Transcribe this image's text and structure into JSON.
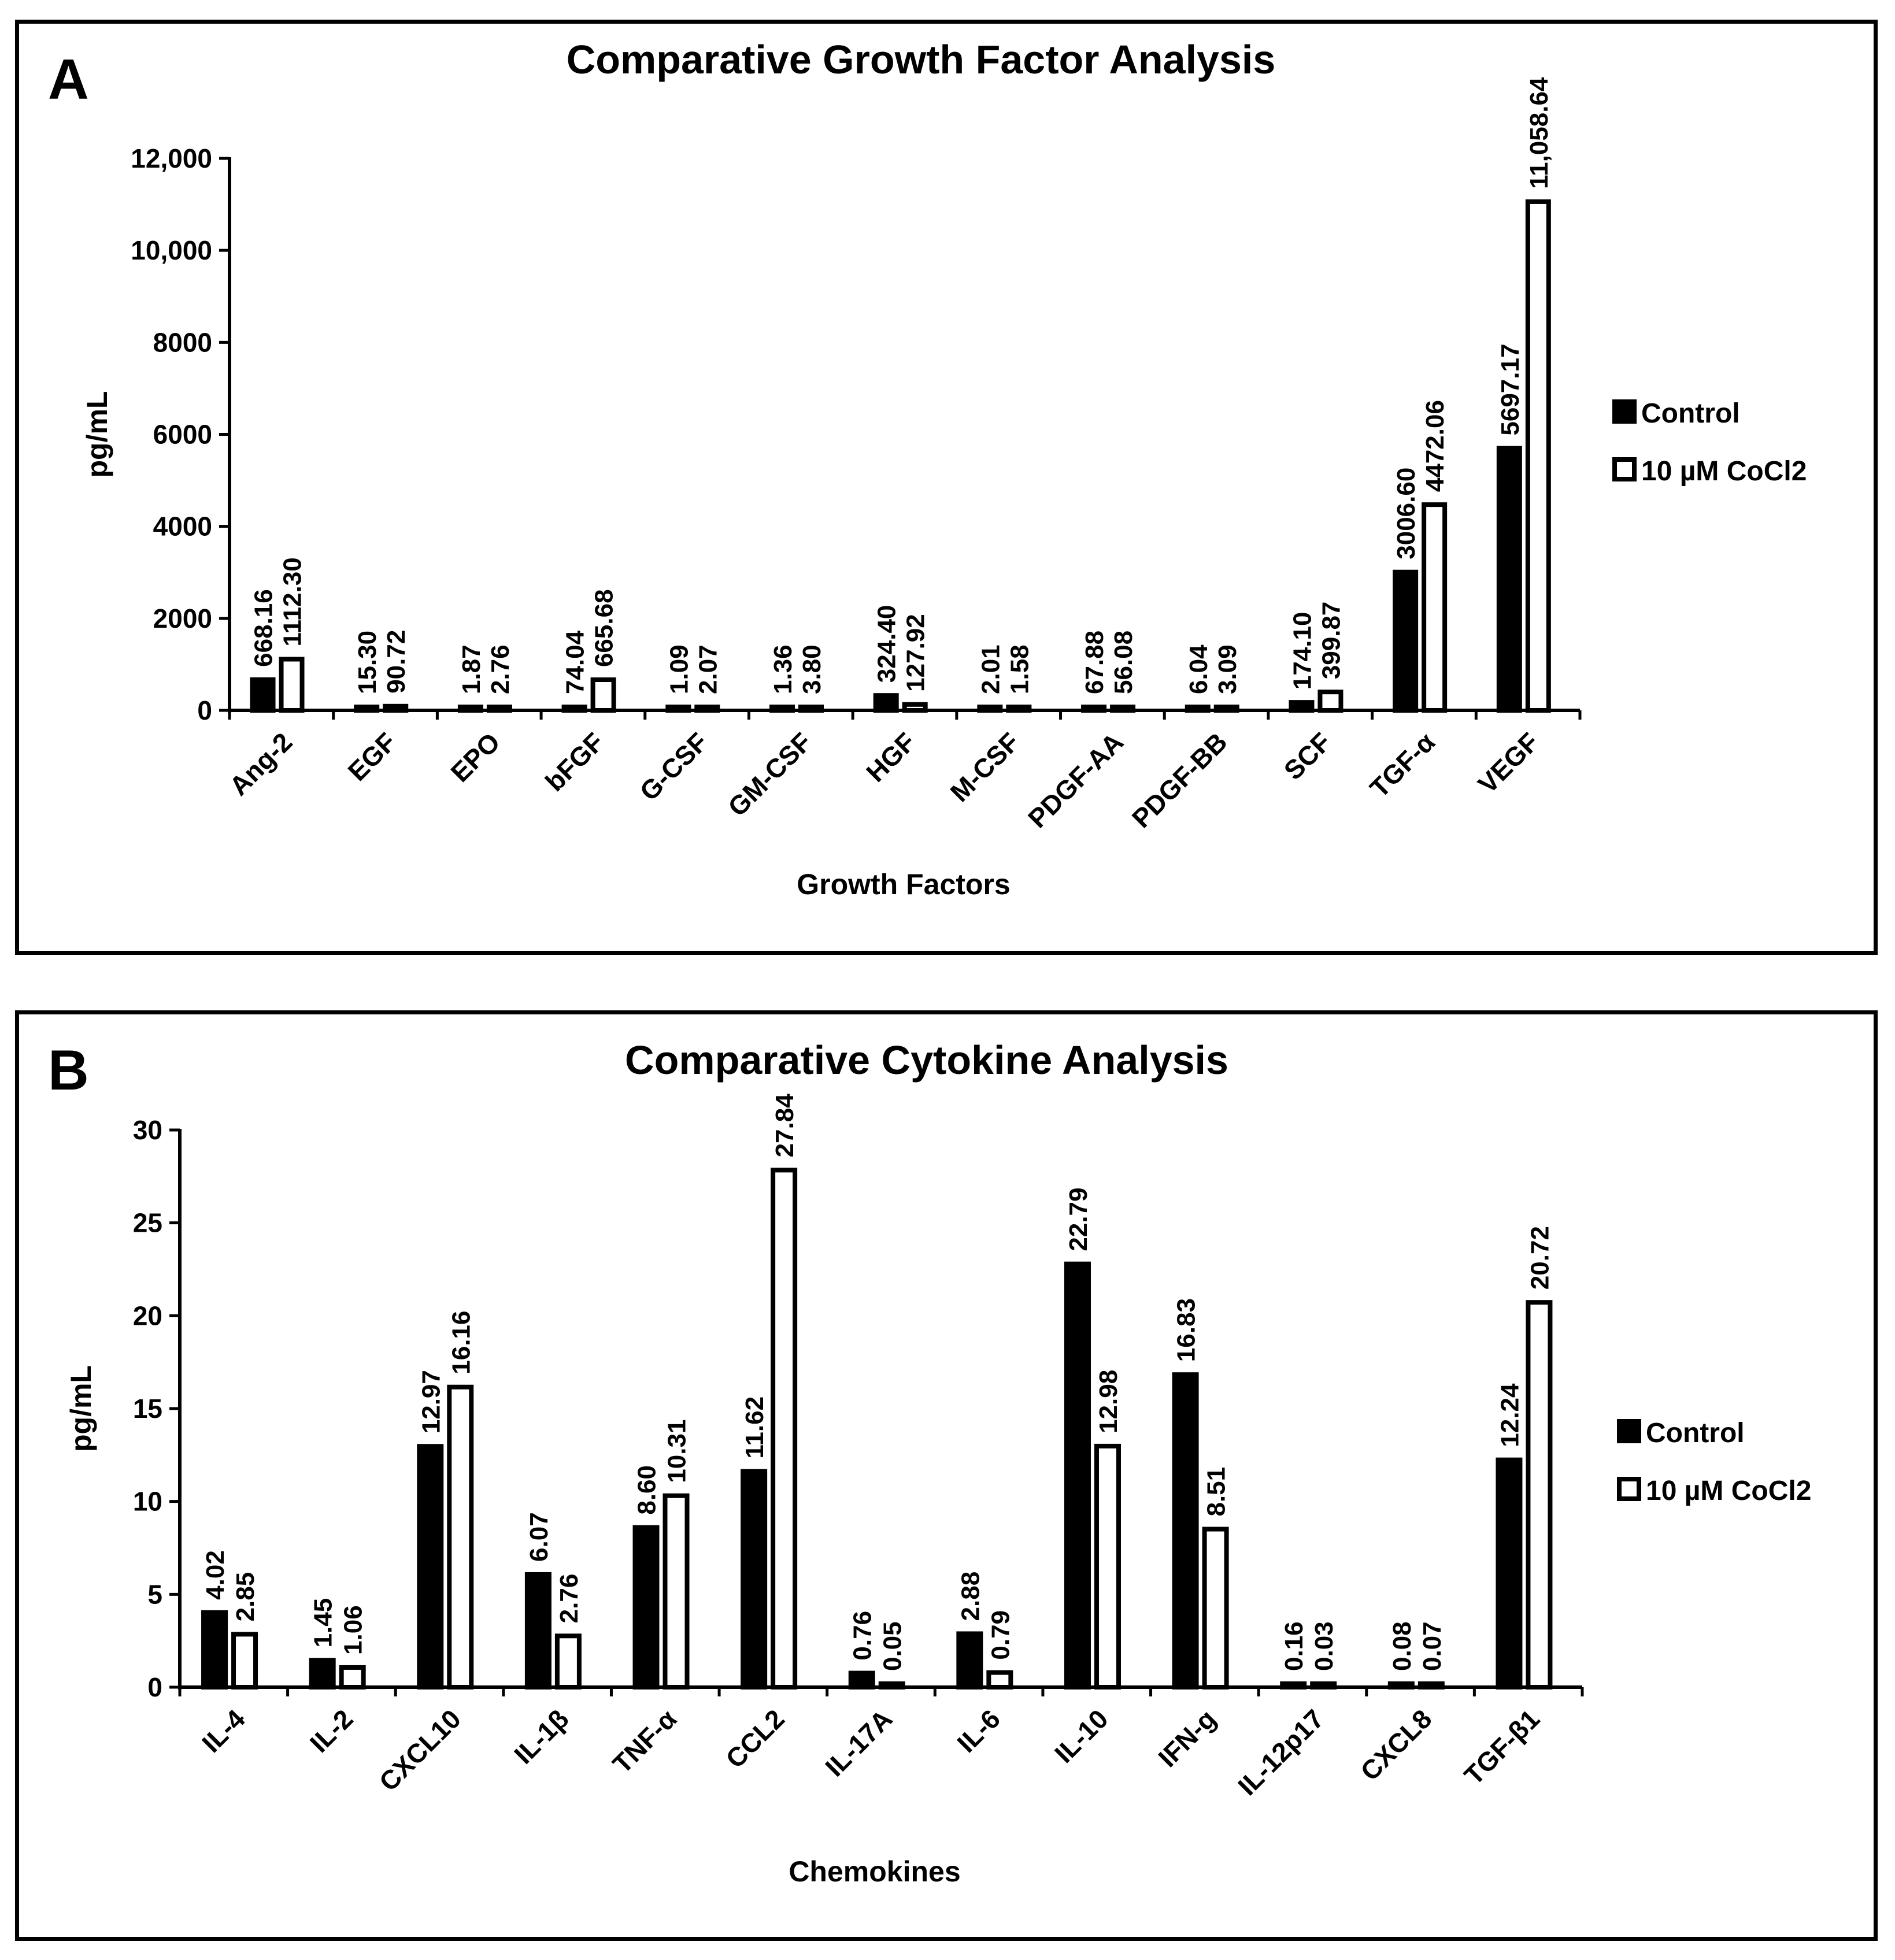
{
  "colors": {
    "control": "#000000",
    "treated": "#ffffff",
    "axis": "#000000",
    "border": "#000000"
  },
  "chart_data": [
    {
      "panel_label": "A",
      "type": "bar",
      "title": "Comparative Growth Factor Analysis",
      "xlabel": "Growth Factors",
      "ylabel": "pg/mL",
      "ylim": [
        0,
        12000
      ],
      "yticks": [
        0,
        2000,
        4000,
        6000,
        8000,
        10000,
        12000
      ],
      "ytick_labels": [
        "0",
        "2000",
        "4000",
        "6000",
        "8000",
        "10,000",
        "12,000"
      ],
      "legend_position": "right",
      "categories": [
        "Ang-2",
        "EGF",
        "EPO",
        "bFGF",
        "G-CSF",
        "GM-CSF",
        "HGF",
        "M-CSF",
        "PDGF-AA",
        "PDGF-BB",
        "SCF",
        "TGF-α",
        "VEGF"
      ],
      "series": [
        {
          "name": "Control",
          "color": "#000000",
          "values": [
            668.16,
            15.3,
            1.87,
            74.04,
            1.09,
            1.36,
            324.4,
            2.01,
            67.88,
            6.04,
            174.1,
            3006.6,
            5697.17
          ],
          "labels": [
            "668.16",
            "15.30",
            "1.87",
            "74.04",
            "1.09",
            "1.36",
            "324.40",
            "2.01",
            "67.88",
            "6.04",
            "174.10",
            "3006.60",
            "5697.17"
          ]
        },
        {
          "name": "10 µM CoCl2",
          "color": "#ffffff",
          "values": [
            1112.3,
            90.72,
            2.76,
            665.68,
            2.07,
            3.8,
            127.92,
            1.58,
            56.08,
            3.09,
            399.87,
            4472.06,
            11058.64
          ],
          "labels": [
            "1112.30",
            "90.72",
            "2.76",
            "665.68",
            "2.07",
            "3.80",
            "127.92",
            "1.58",
            "56.08",
            "3.09",
            "399.87",
            "4472.06",
            "11,058.64"
          ]
        }
      ]
    },
    {
      "panel_label": "B",
      "type": "bar",
      "title": "Comparative Cytokine Analysis",
      "xlabel": "Chemokines",
      "ylabel": "pg/mL",
      "ylim": [
        0,
        30
      ],
      "yticks": [
        0,
        5,
        10,
        15,
        20,
        25,
        30
      ],
      "ytick_labels": [
        "0",
        "5",
        "10",
        "15",
        "20",
        "25",
        "30"
      ],
      "legend_position": "right",
      "categories": [
        "IL-4",
        "IL-2",
        "CXCL10",
        "IL-1β",
        "TNF-α",
        "CCL2",
        "IL-17A",
        "IL-6",
        "IL-10",
        "IFN-g",
        "IL-12p17",
        "CXCL8",
        "TGF-β1"
      ],
      "series": [
        {
          "name": "Control",
          "color": "#000000",
          "values": [
            4.02,
            1.45,
            12.97,
            6.07,
            8.6,
            11.62,
            0.76,
            2.88,
            22.79,
            16.83,
            0.16,
            0.08,
            12.24
          ],
          "labels": [
            "4.02",
            "1.45",
            "12.97",
            "6.07",
            "8.60",
            "11.62",
            "0.76",
            "2.88",
            "22.79",
            "16.83",
            "0.16",
            "0.08",
            "12.24"
          ]
        },
        {
          "name": "10 µM CoCl2",
          "color": "#ffffff",
          "values": [
            2.85,
            1.06,
            16.16,
            2.76,
            10.31,
            27.84,
            0.05,
            0.79,
            12.98,
            8.51,
            0.03,
            0.07,
            20.72
          ],
          "labels": [
            "2.85",
            "1.06",
            "16.16",
            "2.76",
            "10.31",
            "27.84",
            "0.05",
            "0.79",
            "12.98",
            "8.51",
            "0.03",
            "0.07",
            "20.72"
          ]
        }
      ]
    }
  ]
}
